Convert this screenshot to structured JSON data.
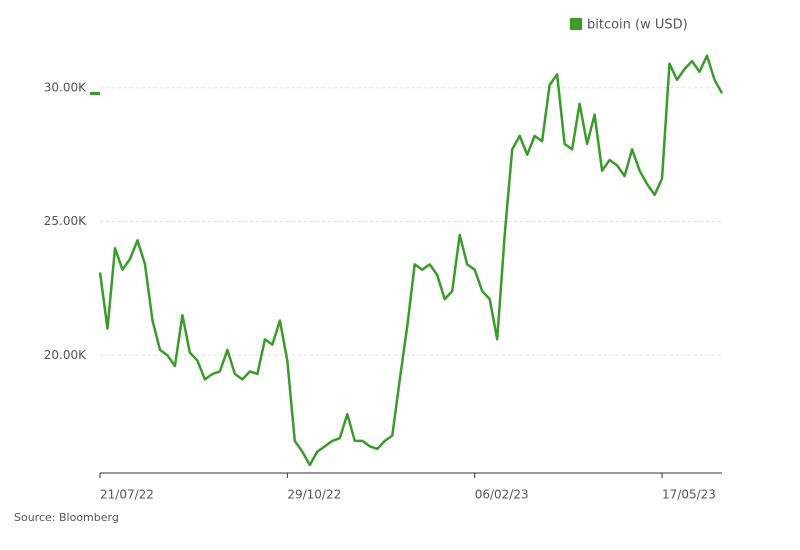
{
  "chart_data": {
    "type": "line",
    "source": "Source: Bloomberg",
    "x": [
      "21/07/22",
      "25/07/22",
      "29/07/22",
      "02/08/22",
      "06/08/22",
      "10/08/22",
      "14/08/22",
      "18/08/22",
      "22/08/22",
      "26/08/22",
      "30/08/22",
      "03/09/22",
      "07/09/22",
      "11/09/22",
      "15/09/22",
      "19/09/22",
      "23/09/22",
      "27/09/22",
      "01/10/22",
      "05/10/22",
      "09/10/22",
      "13/10/22",
      "17/10/22",
      "21/10/22",
      "25/10/22",
      "29/10/22",
      "02/11/22",
      "06/11/22",
      "10/11/22",
      "14/11/22",
      "18/11/22",
      "22/11/22",
      "26/11/22",
      "30/11/22",
      "04/12/22",
      "08/12/22",
      "12/12/22",
      "16/12/22",
      "20/12/22",
      "24/12/22",
      "28/12/22",
      "01/01/23",
      "05/01/23",
      "09/01/23",
      "13/01/23",
      "17/01/23",
      "21/01/23",
      "25/01/23",
      "29/01/23",
      "02/02/23",
      "06/02/23",
      "10/02/23",
      "14/02/23",
      "18/02/23",
      "22/02/23",
      "26/02/23",
      "02/03/23",
      "06/03/23",
      "10/03/23",
      "14/03/23",
      "18/03/23",
      "22/03/23",
      "26/03/23",
      "30/03/23",
      "03/04/23",
      "07/04/23",
      "11/04/23",
      "15/04/23",
      "19/04/23",
      "23/04/23",
      "27/04/23",
      "01/05/23",
      "05/05/23",
      "09/05/23",
      "13/05/23",
      "17/05/23",
      "21/05/23",
      "25/05/23",
      "29/05/23",
      "02/06/23",
      "06/06/23",
      "10/06/23",
      "14/06/23",
      "18/06/23"
    ],
    "series": [
      {
        "name": "bitcoin (w USD)",
        "color": "#3a9b2b",
        "values": [
          23100,
          21000,
          24000,
          23200,
          23600,
          24300,
          23400,
          21300,
          20200,
          20000,
          19600,
          21500,
          20100,
          19800,
          19100,
          19300,
          19400,
          20200,
          19300,
          19100,
          19400,
          19300,
          20600,
          20400,
          21300,
          19800,
          16800,
          16400,
          15900,
          16400,
          16600,
          16800,
          16900,
          17800,
          16800,
          16800,
          16600,
          16500,
          16800,
          17000,
          19100,
          21100,
          23400,
          23200,
          23400,
          23000,
          22100,
          22400,
          24500,
          23400,
          23200,
          22400,
          22100,
          20600,
          24500,
          27700,
          28200,
          27500,
          28200,
          28000,
          30100,
          30500,
          27900,
          27700,
          29400,
          27900,
          29000,
          26900,
          27300,
          27100,
          26700,
          27700,
          26900,
          26400,
          26000,
          26600,
          30900,
          30300,
          30700,
          31000,
          30600,
          31200,
          30300,
          29800
        ]
      }
    ],
    "xlim": [
      "21/07/22",
      "18/06/23"
    ],
    "xticks": [
      "21/07/22",
      "29/10/22",
      "06/02/23",
      "17/05/23"
    ],
    "ylim": [
      15600,
      31600
    ],
    "yticks": [
      {
        "value": 20000,
        "label": "20.00K"
      },
      {
        "value": 25000,
        "label": "25.00K"
      },
      {
        "value": 30000,
        "label": "30.00K"
      }
    ],
    "grid": true
  }
}
